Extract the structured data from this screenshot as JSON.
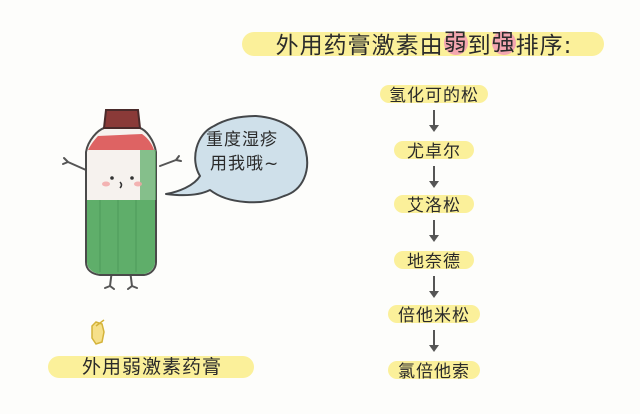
{
  "title": {
    "prefix": "外用药膏激素由",
    "weak": "弱",
    "mid": "到",
    "strong": "强",
    "suffix": "排序:"
  },
  "speech_bubble": {
    "line1": "重度湿疹",
    "line2": "用我哦~"
  },
  "caption": "外用弱激素药膏",
  "flow_items": [
    "氢化可的松",
    "尤卓尔",
    "艾洛松",
    "地奈德",
    "倍他米松",
    "氯倍他索"
  ],
  "colors": {
    "highlight": "#fbf09a",
    "circle_highlight": "#f4a6b0",
    "bottle_green": "#5fae6a",
    "bottle_cap": "#8a3a38",
    "bubble": "#cfe0ea"
  },
  "icons": {
    "bottle": "ointment-bottle-icon",
    "hand": "hand-pointing-icon"
  }
}
